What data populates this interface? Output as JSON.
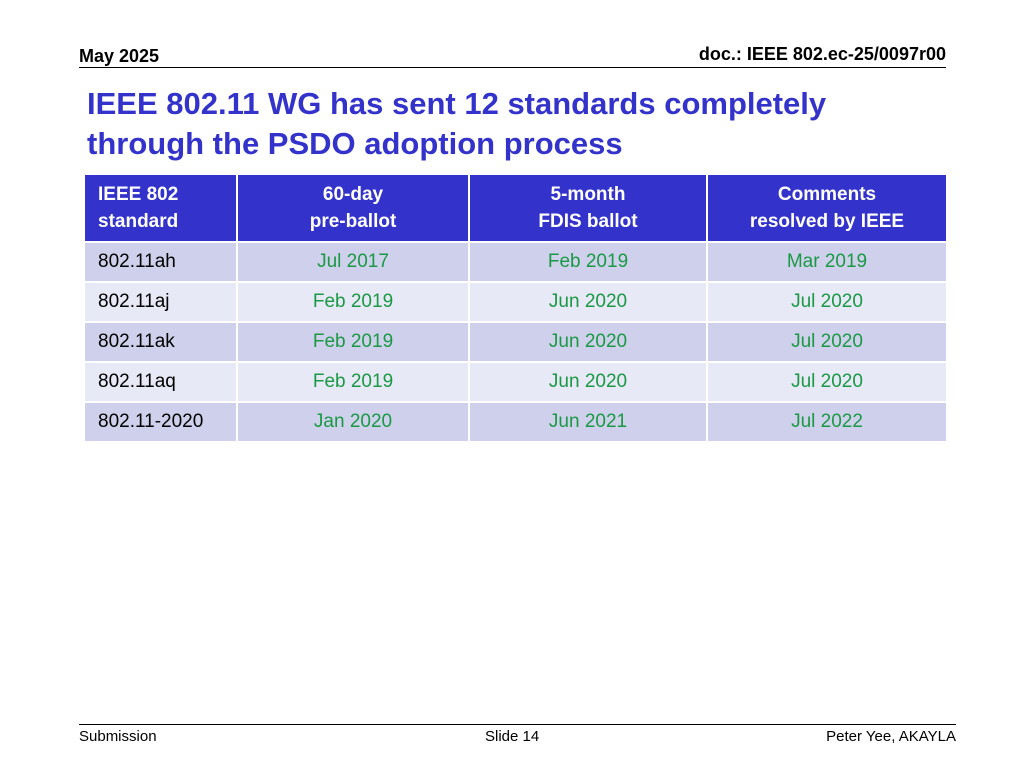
{
  "header": {
    "date": "May 2025",
    "doc_id": "doc.: IEEE 802.ec-25/0097r00"
  },
  "slide": {
    "title_line1": "IEEE 802.11 WG has sent 12 standards completely",
    "title_line2": "through the PSDO adoption process"
  },
  "table": {
    "headers": [
      {
        "line1": "IEEE 802",
        "line2": "standard"
      },
      {
        "line1": "60-day",
        "line2": "pre-ballot"
      },
      {
        "line1": "5-month",
        "line2": "FDIS ballot"
      },
      {
        "line1": "Comments",
        "line2": "resolved by IEEE"
      }
    ],
    "rows": [
      {
        "standard": "802.11ah",
        "pre_ballot": "Jul 2017",
        "fdis_ballot": "Feb 2019",
        "resolved": "Mar 2019"
      },
      {
        "standard": "802.11aj",
        "pre_ballot": "Feb 2019",
        "fdis_ballot": "Jun 2020",
        "resolved": "Jul 2020"
      },
      {
        "standard": "802.11ak",
        "pre_ballot": "Feb 2019",
        "fdis_ballot": "Jun 2020",
        "resolved": "Jul 2020"
      },
      {
        "standard": "802.11aq",
        "pre_ballot": "Feb 2019",
        "fdis_ballot": "Jun 2020",
        "resolved": "Jul 2020"
      },
      {
        "standard": "802.11-2020",
        "pre_ballot": "Jan 2020",
        "fdis_ballot": "Jun 2021",
        "resolved": "Jul 2022"
      }
    ]
  },
  "footer": {
    "left": "Submission",
    "center": "Slide 14",
    "right": "Peter Yee, AKAYLA"
  },
  "colors": {
    "title": "#3333cc",
    "header_bg": "#3333cc",
    "date_text": "#1a9944",
    "row_dark": "#cfd1ec",
    "row_light": "#e8e9f6"
  }
}
